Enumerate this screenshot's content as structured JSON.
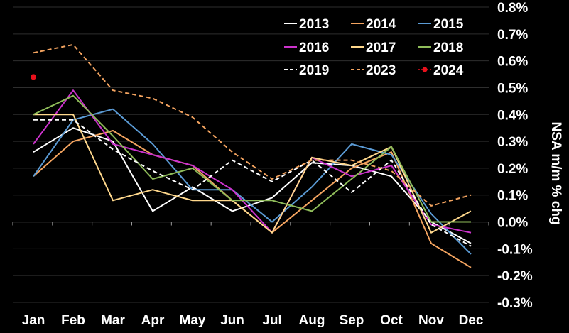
{
  "chart_data": {
    "type": "line",
    "title": "",
    "xlabel": "",
    "ylabel": "NSA m/m % chg",
    "ylim": [
      -0.3,
      0.8
    ],
    "yticks": [
      -0.3,
      -0.2,
      -0.1,
      0.0,
      0.1,
      0.2,
      0.3,
      0.4,
      0.5,
      0.6,
      0.7,
      0.8
    ],
    "ytick_labels": [
      "-0.3%",
      "-0.2%",
      "-0.1%",
      "0.0%",
      "0.1%",
      "0.2%",
      "0.3%",
      "0.4%",
      "0.5%",
      "0.6%",
      "0.7%",
      "0.8%"
    ],
    "categories": [
      "Jan",
      "Feb",
      "Mar",
      "Apr",
      "May",
      "Jun",
      "Jul",
      "Aug",
      "Sep",
      "Oct",
      "Nov",
      "Dec"
    ],
    "grid": true,
    "legend_position": "top-right",
    "series": [
      {
        "name": "2013",
        "color": "#ffffff",
        "style": "solid",
        "values": [
          0.26,
          0.35,
          0.3,
          0.04,
          0.13,
          0.04,
          0.09,
          0.22,
          0.21,
          0.17,
          0.0,
          -0.08
        ]
      },
      {
        "name": "2014",
        "color": "#f4a460",
        "style": "solid",
        "values": [
          0.17,
          0.3,
          0.34,
          0.25,
          0.21,
          0.08,
          -0.04,
          0.08,
          0.2,
          0.26,
          -0.08,
          -0.17
        ]
      },
      {
        "name": "2015",
        "color": "#5b9bd5",
        "style": "solid",
        "values": [
          0.17,
          0.38,
          0.42,
          0.29,
          0.12,
          0.12,
          0.0,
          0.13,
          0.29,
          0.25,
          0.03,
          -0.12
        ]
      },
      {
        "name": "2016",
        "color": "#cc33cc",
        "style": "solid",
        "values": [
          0.29,
          0.49,
          0.29,
          0.25,
          0.21,
          0.12,
          -0.04,
          0.24,
          0.17,
          0.21,
          -0.01,
          -0.04
        ]
      },
      {
        "name": "2017",
        "color": "#ffd88c",
        "style": "solid",
        "values": [
          0.4,
          0.4,
          0.08,
          0.12,
          0.08,
          0.08,
          -0.04,
          0.24,
          0.21,
          0.28,
          -0.04,
          0.04
        ]
      },
      {
        "name": "2018",
        "color": "#8fbc5a",
        "style": "solid",
        "values": [
          0.4,
          0.47,
          0.32,
          0.16,
          0.2,
          0.08,
          0.08,
          0.04,
          0.16,
          0.28,
          0.0,
          0.0
        ]
      },
      {
        "name": "2019",
        "color": "#ffffff",
        "style": "dashed",
        "values": [
          0.38,
          0.38,
          0.27,
          0.19,
          0.12,
          0.23,
          0.15,
          0.23,
          0.11,
          0.23,
          -0.01,
          -0.09
        ]
      },
      {
        "name": "2023",
        "color": "#f4a460",
        "style": "dashed",
        "values": [
          0.63,
          0.66,
          0.49,
          0.46,
          0.39,
          0.26,
          0.16,
          0.23,
          0.23,
          0.19,
          0.06,
          0.1
        ]
      },
      {
        "name": "2024",
        "color": "#e8111c",
        "style": "marker",
        "values": [
          0.54,
          null,
          null,
          null,
          null,
          null,
          null,
          null,
          null,
          null,
          null,
          null
        ]
      }
    ]
  }
}
